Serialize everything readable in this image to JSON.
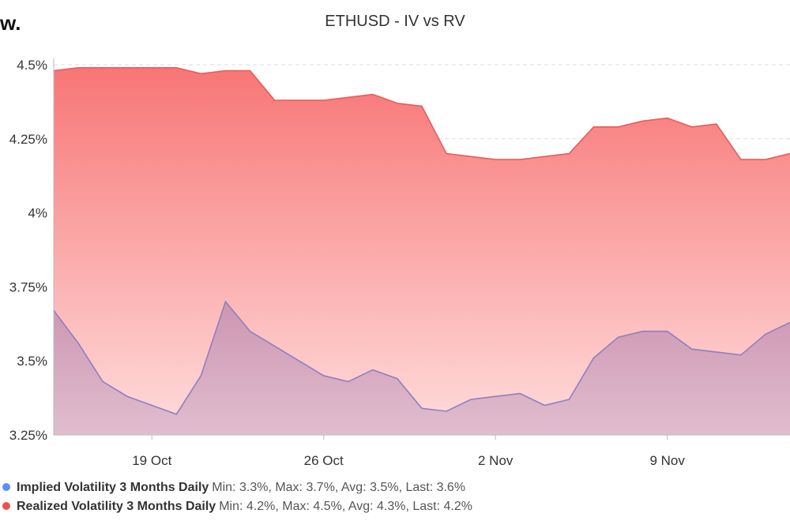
{
  "logo_text": "w.",
  "chart_data": {
    "type": "area",
    "title": "ETHUSD - IV vs RV",
    "xlabel": "",
    "ylabel": "",
    "x_tick_labels": [
      "19 Oct",
      "26 Oct",
      "2 Nov",
      "9 Nov"
    ],
    "y_tick_labels": [
      "3.25%",
      "3.5%",
      "3.75%",
      "4%",
      "4.25%",
      "4.5%"
    ],
    "y_ticks": [
      3.25,
      3.5,
      3.75,
      4.0,
      4.25,
      4.5
    ],
    "ylim": [
      3.25,
      4.5
    ],
    "grid": true,
    "legend_position": "bottom-left",
    "series": [
      {
        "name": "Implied Volatility 3 Months Daily",
        "color": "#8f7fc0",
        "dot_color": "#5b8ff9",
        "stats": "Min: 3.3%, Max: 3.7%, Avg: 3.5%, Last: 3.6%",
        "values": [
          3.67,
          3.56,
          3.43,
          3.38,
          3.35,
          3.32,
          3.45,
          3.7,
          3.6,
          3.55,
          3.5,
          3.45,
          3.43,
          3.47,
          3.44,
          3.34,
          3.33,
          3.37,
          3.38,
          3.39,
          3.35,
          3.37,
          3.51,
          3.58,
          3.6,
          3.6,
          3.54,
          3.53,
          3.52,
          3.59,
          3.63
        ]
      },
      {
        "name": "Realized Volatility 3 Months Daily",
        "color": "#e85c5c",
        "dot_color": "#f05050",
        "stats": "Min: 4.2%, Max: 4.5%, Avg: 4.3%, Last: 4.2%",
        "values": [
          4.48,
          4.49,
          4.49,
          4.49,
          4.49,
          4.49,
          4.47,
          4.48,
          4.48,
          4.38,
          4.38,
          4.38,
          4.39,
          4.4,
          4.37,
          4.36,
          4.2,
          4.19,
          4.18,
          4.18,
          4.19,
          4.2,
          4.29,
          4.29,
          4.31,
          4.32,
          4.29,
          4.3,
          4.18,
          4.18,
          4.2
        ]
      }
    ]
  }
}
